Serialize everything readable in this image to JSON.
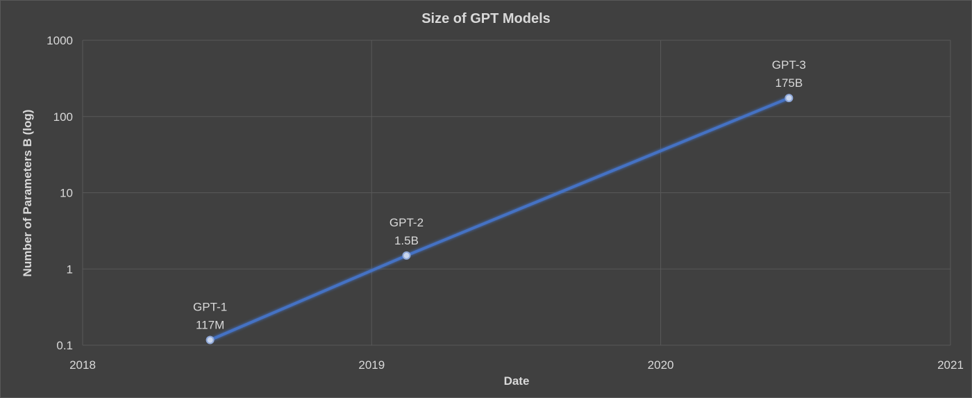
{
  "chart_data": {
    "type": "line",
    "title": "Size of GPT Models",
    "xlabel": "Date",
    "ylabel": "Number of Parameters  B (log)",
    "xlim": [
      "2018-01-01",
      "2021-01-01"
    ],
    "ylim": [
      0.1,
      1000
    ],
    "yscale": "log",
    "grid": true,
    "legend": "none",
    "x_ticks": [
      "2018",
      "2019",
      "2020",
      "2021"
    ],
    "y_ticks": [
      "0.1",
      "1",
      "10",
      "100",
      "1000"
    ],
    "series": [
      {
        "color": "#4472c4",
        "points": [
          {
            "x": "2018-06-11",
            "y": 0.117,
            "label_name": "GPT-1",
            "label_value": "117M"
          },
          {
            "x": "2019-02-14",
            "y": 1.5,
            "label_name": "GPT-2",
            "label_value": "1.5B"
          },
          {
            "x": "2020-06-11",
            "y": 175,
            "label_name": "GPT-3",
            "label_value": "175B"
          }
        ]
      }
    ]
  },
  "colors": {
    "background": "#404040",
    "text": "#d9d9d9",
    "grid": "#595959",
    "line": "#4472c4"
  }
}
